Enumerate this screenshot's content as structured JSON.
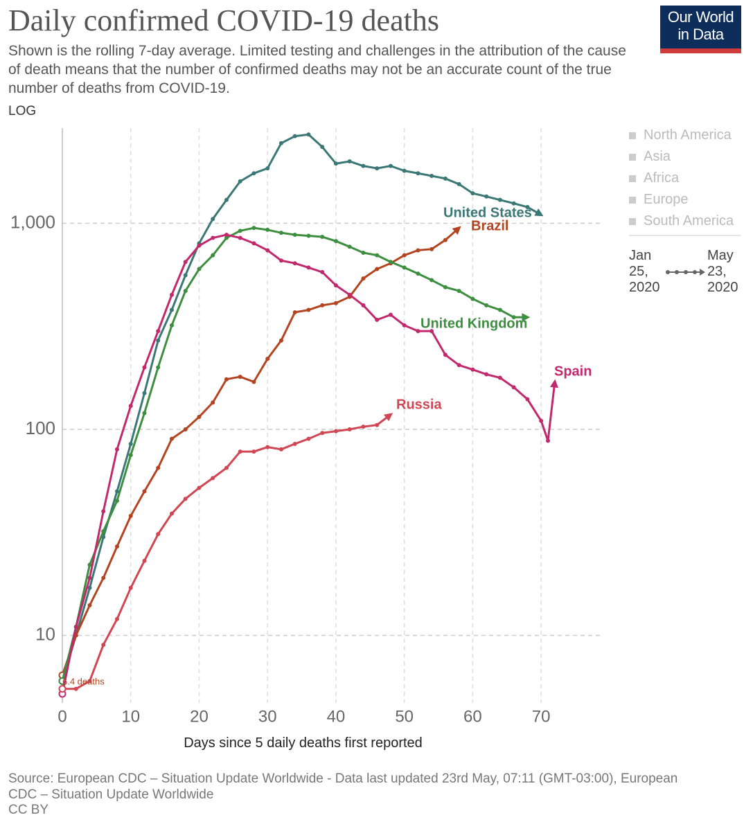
{
  "chart_data": {
    "type": "line",
    "title": "Daily confirmed COVID-19 deaths",
    "subtitle": "Shown is the rolling 7-day average. Limited testing and challenges in the attribution of the cause of death means that the number of confirmed deaths may not be an accurate count of the true number of deaths from COVID-19.",
    "scale_label": "LOG",
    "logo": "Our World in Data",
    "x_label": "Days since 5 daily deaths first reported",
    "source": "Source: European CDC – Situation Update Worldwide - Data last updated 23rd May, 07:11 (GMT-03:00), European CDC – Situation Update Worldwide",
    "license": "CC BY",
    "annotation": "6.4 deaths",
    "legend_items": [
      "North America",
      "Asia",
      "Africa",
      "Europe",
      "South America"
    ],
    "time_start": "Jan 25, 2020",
    "time_end": "May 23, 2020",
    "log": true,
    "grid": true,
    "xlim": [
      0,
      79
    ],
    "ylim": [
      4.7,
      2900
    ],
    "xticks": [
      0,
      10,
      20,
      30,
      40,
      50,
      60,
      70
    ],
    "yticks": [
      10,
      100,
      {
        "value": 1000,
        "label": "1,000"
      }
    ],
    "x": [
      0,
      2,
      4,
      6,
      8,
      10,
      12,
      14,
      16,
      18,
      20,
      22,
      24,
      26,
      28,
      30,
      32,
      34,
      36,
      38,
      40,
      42,
      44,
      46,
      48,
      50,
      52,
      54,
      56,
      58,
      60,
      62,
      64,
      66,
      68,
      70,
      71,
      72
    ],
    "series": [
      {
        "name": "United States",
        "color": "#3b7775",
        "values": [
          6,
          10,
          17,
          30,
          50,
          85,
          150,
          270,
          380,
          560,
          800,
          1050,
          1300,
          1600,
          1750,
          1850,
          2450,
          2650,
          2700,
          2350,
          1950,
          2000,
          1900,
          1850,
          1900,
          1800,
          1750,
          1700,
          1650,
          1550,
          1400,
          1350,
          1300,
          1250,
          1200,
          1100,
          null,
          null
        ]
      },
      {
        "name": "Brazil",
        "color": "#b4441f",
        "values": [
          6.4,
          10,
          14,
          19,
          27,
          38,
          50,
          65,
          90,
          100,
          115,
          135,
          175,
          180,
          170,
          220,
          270,
          370,
          380,
          400,
          410,
          440,
          540,
          600,
          640,
          700,
          740,
          750,
          830,
          950,
          null,
          null,
          null,
          null,
          null,
          null,
          null,
          null
        ]
      },
      {
        "name": "United Kingdom",
        "color": "#3e8e40",
        "values": [
          6,
          11,
          22,
          32,
          45,
          75,
          120,
          200,
          320,
          470,
          600,
          700,
          850,
          920,
          950,
          930,
          900,
          880,
          870,
          860,
          820,
          770,
          720,
          700,
          650,
          610,
          570,
          530,
          490,
          470,
          430,
          400,
          380,
          350,
          350,
          null,
          null,
          null
        ]
      },
      {
        "name": "Spain",
        "color": "#c2296d",
        "values": [
          5.2,
          11,
          19,
          40,
          80,
          130,
          200,
          300,
          450,
          650,
          780,
          850,
          880,
          850,
          800,
          740,
          660,
          640,
          610,
          580,
          500,
          450,
          400,
          340,
          360,
          320,
          300,
          300,
          230,
          205,
          195,
          185,
          178,
          160,
          140,
          110,
          88,
          170
        ]
      },
      {
        "name": "Russia",
        "color": "#d04653",
        "values": [
          5.5,
          5.5,
          6,
          9,
          12,
          17,
          23,
          31,
          39,
          46,
          52,
          58,
          65,
          78,
          78,
          82,
          80,
          85,
          90,
          96,
          98,
          100,
          103,
          105,
          118,
          null,
          null,
          null,
          null,
          null,
          null,
          null,
          null,
          null,
          null,
          null,
          null,
          null
        ]
      }
    ]
  }
}
